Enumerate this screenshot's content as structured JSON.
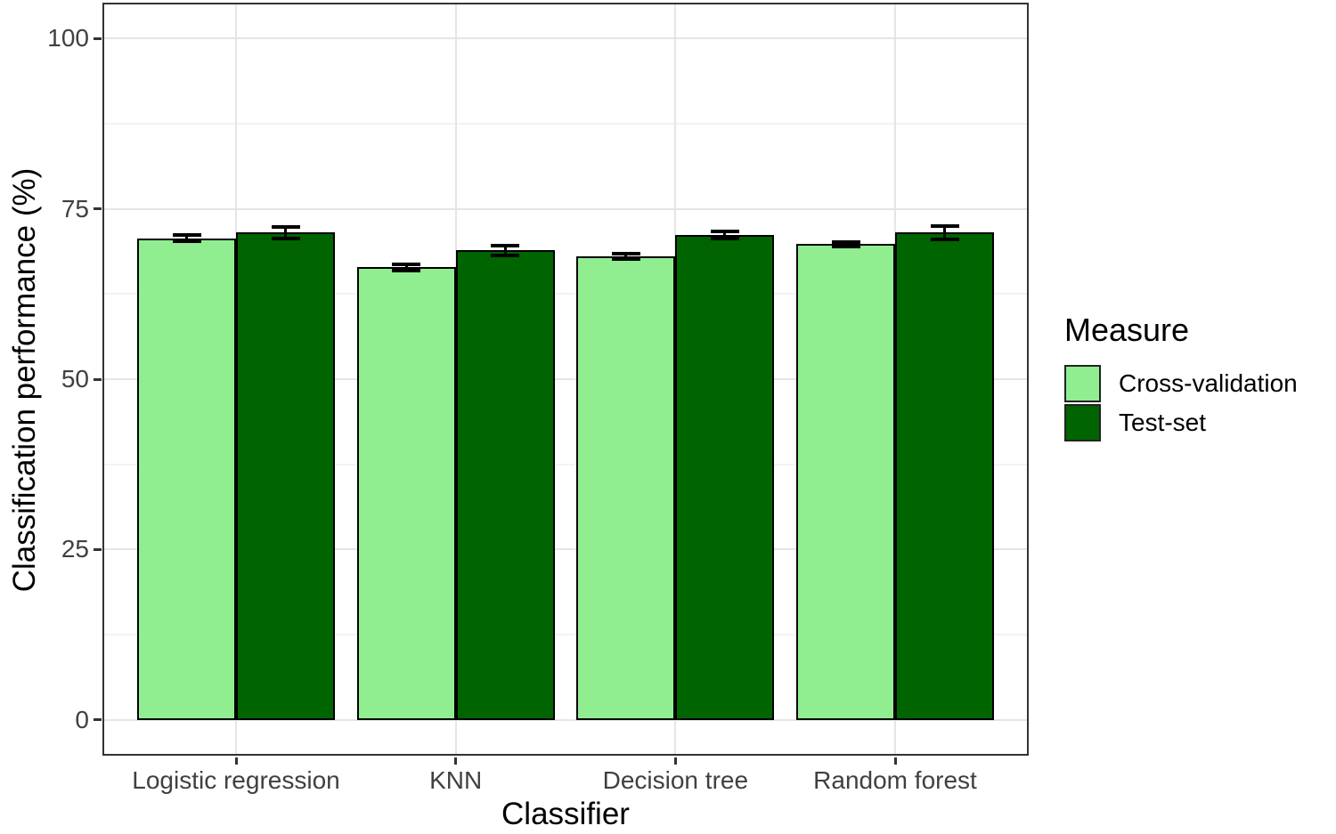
{
  "chart_data": {
    "type": "bar",
    "title": "",
    "categories": [
      "Logistic regression",
      "KNN",
      "Decision tree",
      "Random forest"
    ],
    "series": [
      {
        "name": "Cross-validation",
        "color": "#90EE90",
        "values": [
          70.7,
          66.4,
          68.0,
          69.8
        ],
        "errors": [
          0.4,
          0.4,
          0.4,
          0.3
        ]
      },
      {
        "name": "Test-set",
        "color": "#006400",
        "values": [
          71.5,
          68.9,
          71.2,
          71.5
        ],
        "errors": [
          0.9,
          0.7,
          0.5,
          1.0
        ]
      }
    ],
    "xlabel": "Classifier",
    "ylabel": "Classification performance (%)",
    "ylim": [
      0,
      100
    ],
    "yticks": [
      0,
      25,
      50,
      75,
      100
    ],
    "ytick_labels": [
      "0",
      "25",
      "50",
      "75",
      "100"
    ],
    "yminor": [
      12.5,
      37.5,
      62.5,
      87.5
    ],
    "grid": "on",
    "legend_title": "Measure",
    "legend_position": "right",
    "bar_outline_color": "#000000",
    "error_bar_color": "#000000",
    "panel_border_color": "#333333",
    "gridline_color": "#e5e5e5"
  }
}
